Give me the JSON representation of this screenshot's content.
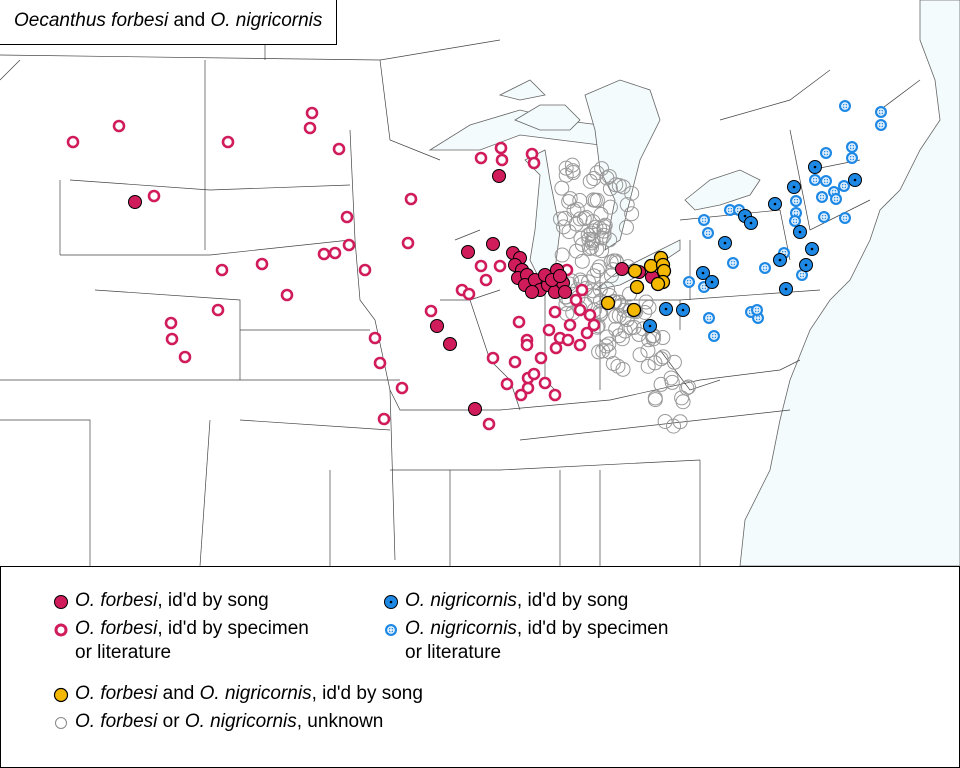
{
  "title": {
    "species1": "Oecanthus forbesi",
    "and": "and",
    "species2": "O. nigricornis"
  },
  "colors": {
    "forbesi": "#d01c5b",
    "nigricornis": "#1e88e5",
    "both": "#f5b800",
    "unknown": "#888888",
    "water": "#f3fbfd",
    "borders": "#555555"
  },
  "legend": {
    "forbesi_song": {
      "species": "O. forbesi",
      "text": ", id'd by song",
      "icon": "filled-crimson-circle"
    },
    "forbesi_specimen": {
      "species": "O. forbesi",
      "text": ", id'd by specimen",
      "text2": "or literature",
      "icon": "crimson-ring"
    },
    "nigricornis_song": {
      "species": "O. nigricornis",
      "text": ", id'd by song",
      "icon": "blue-dot-circle"
    },
    "nigricornis_specimen": {
      "species": "O. nigricornis",
      "text": ", id'd by specimen",
      "text2": "or literature",
      "icon": "blue-crosshair-circle"
    },
    "both_song": {
      "species1": "O. forbesi",
      "and": " and ",
      "species2": "O. nigricornis",
      "text": ", id'd by song",
      "icon": "yellow-filled-circle"
    },
    "unknown": {
      "species1": "O. forbesi",
      "or": " or ",
      "species2": "O. nigricornis",
      "text": ", unknown",
      "icon": "gray-ring"
    }
  }
}
